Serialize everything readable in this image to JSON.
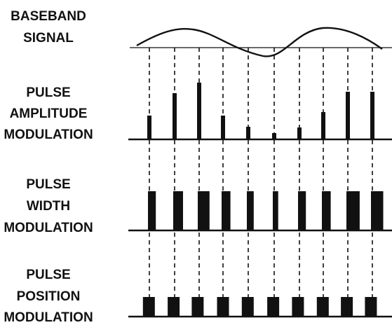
{
  "labels": {
    "baseband": [
      "BASEBAND",
      "SIGNAL"
    ],
    "pam": [
      "PULSE",
      "AMPLITUDE",
      "MODULATION"
    ],
    "pwm": [
      "PULSE",
      "WIDTH",
      "MODULATION"
    ],
    "ppm": [
      "PULSE",
      "POSITION",
      "MODULATION"
    ]
  },
  "samples": {
    "count": 10,
    "pam_relative_heights": [
      0.34,
      0.66,
      0.81,
      0.34,
      0.18,
      0.09,
      0.17,
      0.39,
      0.68,
      0.68
    ],
    "pwm_relative_widths": [
      0.8,
      1.0,
      1.2,
      0.9,
      0.7,
      0.55,
      0.8,
      0.9,
      1.35,
      1.25
    ],
    "ppm_relative_shifts": [
      0.2,
      0.15,
      0.1,
      0.25,
      0.2,
      0.15,
      0.1,
      0.2,
      0.15,
      0.1
    ]
  }
}
